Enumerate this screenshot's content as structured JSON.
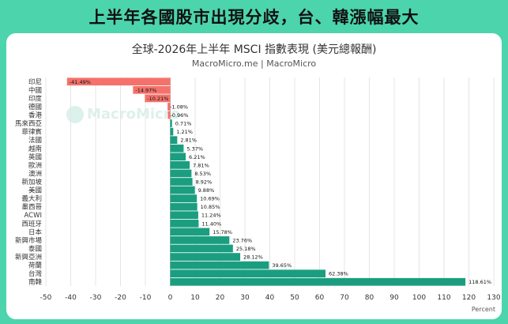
{
  "headline": "上半年各國股市出現分歧，台、韓漲幅最大",
  "watermark": "MacroMicro",
  "chart_data": {
    "type": "bar",
    "orientation": "horizontal",
    "title": "全球-2026年上半年 MSCI 指數表現 (美元總報酬)",
    "subtitle": "MacroMicro.me | MacroMicro",
    "xlabel": "Percent",
    "xlim": [
      -50,
      130
    ],
    "xticks": [
      -50,
      -40,
      -30,
      -20,
      -10,
      0,
      10,
      20,
      30,
      40,
      50,
      60,
      70,
      80,
      90,
      100,
      110,
      120,
      130
    ],
    "grid": true,
    "categories": [
      "印尼",
      "中國",
      "印度",
      "德國",
      "香港",
      "馬來西亞",
      "菲律賓",
      "法國",
      "越南",
      "英國",
      "歐洲",
      "澳洲",
      "新加坡",
      "美國",
      "義大利",
      "墨西哥",
      "ACWI",
      "西班牙",
      "日本",
      "新興市場",
      "泰國",
      "新興亞洲",
      "荷蘭",
      "台灣",
      "南韓"
    ],
    "values": [
      -41.49,
      -14.97,
      -10.21,
      -1.08,
      -0.96,
      0.71,
      1.21,
      2.81,
      5.37,
      6.21,
      7.81,
      8.53,
      8.92,
      9.88,
      10.69,
      10.85,
      11.24,
      11.4,
      15.78,
      23.76,
      25.18,
      28.12,
      39.65,
      62.38,
      118.61
    ],
    "data_labels": [
      "-41.49%",
      "-14.97%",
      "-10.21%",
      "-1.08%",
      "-0.96%",
      "0.71%",
      "1.21%",
      "2.81%",
      "5.37%",
      "6.21%",
      "7.81%",
      "8.53%",
      "8.92%",
      "9.88%",
      "10.69%",
      "10.85%",
      "11.24%",
      "11.40%",
      "15.78%",
      "23.76%",
      "25.18%",
      "28.12%",
      "39.65%",
      "62.38%",
      "118.61%"
    ],
    "colors": {
      "negative": "#f4726b",
      "positive": "#1a9e7f"
    }
  }
}
